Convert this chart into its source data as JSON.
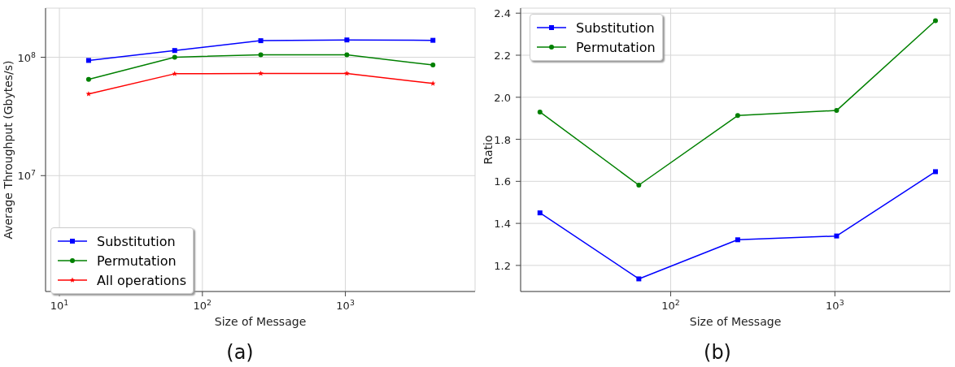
{
  "chart_data": [
    {
      "type": "line",
      "title": "(a)",
      "xlabel": "Size of Message",
      "ylabel": "Average Throughput (Gbytes/s)",
      "log": "xy",
      "grid": true,
      "legend": "bottom left",
      "x": [
        16,
        64,
        256,
        1024,
        4096
      ],
      "xlim": [
        8,
        8070
      ],
      "xticks": [
        {
          "value": 10,
          "label": "10$^{1}$"
        },
        {
          "value": 100,
          "label": "10$^{2}$"
        },
        {
          "value": 1000,
          "label": "10$^{3}$"
        }
      ],
      "ylim": [
        1050000,
        260000000
      ],
      "yticks": [
        {
          "value": 10000000,
          "label": "10$^{7}$"
        },
        {
          "value": 100000000,
          "label": "10$^{8}$"
        }
      ],
      "series": [
        {
          "name": "Substitution",
          "color": "#0000ff",
          "marker": "square",
          "values": [
            94000000,
            114000000,
            138000000,
            140000000,
            139000000
          ]
        },
        {
          "name": "Permutation",
          "color": "#008000",
          "marker": "circle",
          "values": [
            65000000,
            100000000,
            105000000,
            105000000,
            86000000
          ]
        },
        {
          "name": "All operations",
          "color": "#ff0000",
          "marker": "star",
          "values": [
            49000000,
            72500000,
            73000000,
            73000000,
            60000000
          ]
        }
      ]
    },
    {
      "type": "line",
      "title": "(b)",
      "xlabel": "Size of Message",
      "ylabel": "Ratio",
      "log": "x",
      "grid": true,
      "legend": "top left",
      "x": [
        16,
        64,
        256,
        1024,
        4096
      ],
      "xlim": [
        12.2,
        5030
      ],
      "xticks": [
        {
          "value": 100,
          "label": "10$^{2}$"
        },
        {
          "value": 1000,
          "label": "10$^{3}$"
        }
      ],
      "ylim": [
        1.076,
        2.424
      ],
      "yticks": [
        1.2,
        1.4,
        1.6,
        1.8,
        {
          "value": 2,
          "label": "2.0"
        },
        2.2,
        2.4
      ],
      "series": [
        {
          "name": "Substitution",
          "color": "#0000ff",
          "marker": "square",
          "values": [
            1.45,
            1.136,
            1.322,
            1.34,
            1.646
          ]
        },
        {
          "name": "Permutation",
          "color": "#008000",
          "marker": "circle",
          "values": [
            1.93,
            1.582,
            1.913,
            1.937,
            2.364
          ]
        }
      ]
    }
  ]
}
